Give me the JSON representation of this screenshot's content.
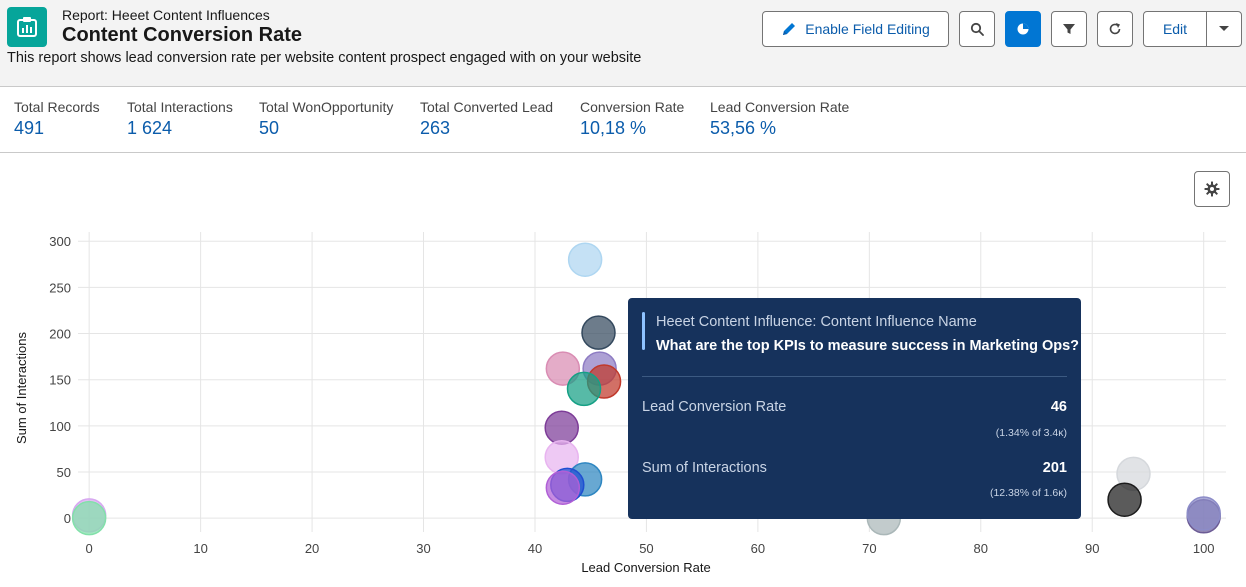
{
  "header": {
    "report_kind": "Report: Heeet Content Influences",
    "title": "Content Conversion Rate",
    "description": "This report shows lead conversion rate per website content prospect engaged with on your website",
    "app_icon": "report-icon"
  },
  "toolbar": {
    "enable_field_editing": "Enable Field Editing",
    "edit": "Edit",
    "icons": [
      "pencil-icon",
      "search-icon",
      "chart-icon",
      "filter-icon",
      "refresh-icon",
      "chevron-down-icon"
    ]
  },
  "summary": [
    {
      "label": "Total Records",
      "value": "491"
    },
    {
      "label": "Total Interactions",
      "value": "1 624"
    },
    {
      "label": "Total WonOpportunity",
      "value": "50"
    },
    {
      "label": "Total Converted Lead",
      "value": "263"
    },
    {
      "label": "Conversion Rate",
      "value": "10,18 %"
    },
    {
      "label": "Lead Conversion Rate",
      "value": "53,56 %"
    }
  ],
  "chart_data": {
    "type": "scatter",
    "xlabel": "Lead Conversion Rate",
    "ylabel": "Sum of Interactions",
    "xlim": [
      -1,
      102
    ],
    "ylim": [
      -15,
      310
    ],
    "xticks": [
      "0",
      "10",
      "20",
      "30",
      "40",
      "50",
      "60",
      "70",
      "80",
      "90",
      "100"
    ],
    "yticks": [
      "0",
      "50",
      "100",
      "150",
      "200",
      "250",
      "300"
    ],
    "grid": true,
    "points": [
      {
        "x": 44.5,
        "y": 280,
        "color": "#aed6f1"
      },
      {
        "x": 45.7,
        "y": 201,
        "color": "#34495e"
      },
      {
        "x": 42.5,
        "y": 162,
        "color": "#d98cb3"
      },
      {
        "x": 45.8,
        "y": 162,
        "color": "#8e7cc3"
      },
      {
        "x": 46.2,
        "y": 148,
        "color": "#c0392b"
      },
      {
        "x": 44.4,
        "y": 140,
        "color": "#16a085"
      },
      {
        "x": 42.4,
        "y": 98,
        "color": "#7d3c98"
      },
      {
        "x": 42.4,
        "y": 66,
        "color": "#e8b4f0"
      },
      {
        "x": 44.5,
        "y": 42,
        "color": "#2e86c1"
      },
      {
        "x": 42.9,
        "y": 36,
        "color": "#1f4fd1"
      },
      {
        "x": 42.5,
        "y": 33,
        "color": "#b05fd6"
      },
      {
        "x": 0,
        "y": 3,
        "color": "#d7a8f0"
      },
      {
        "x": 0,
        "y": 0,
        "color": "#82e0aa"
      },
      {
        "x": 71.3,
        "y": 0,
        "color": "#aab7b8"
      },
      {
        "x": 93.7,
        "y": 48,
        "color": "#d5d8dc"
      },
      {
        "x": 92.9,
        "y": 20,
        "color": "#1c1c1c"
      },
      {
        "x": 100,
        "y": 2,
        "color": "#6b5b95"
      },
      {
        "x": 100,
        "y": 5,
        "color": "#8c8cc8"
      }
    ]
  },
  "tooltip": {
    "field": "Heeet Content Influence: Content Influence Name",
    "name": "What are the top KPIs to measure success in Marketing Ops?",
    "rows": [
      {
        "label": "Lead Conversion Rate",
        "value": "46",
        "sub": "(1.34% of 3.4ᴋ)"
      },
      {
        "label": "Sum of Interactions",
        "value": "201",
        "sub": "(12.38% of 1.6ᴋ)"
      }
    ]
  }
}
